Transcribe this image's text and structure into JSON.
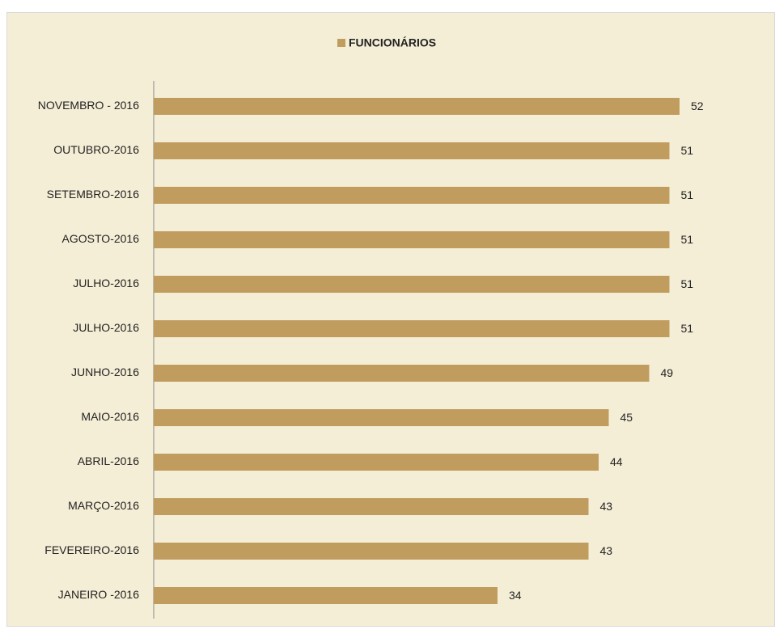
{
  "chart_data": {
    "type": "barh",
    "legend": "FUNCIONÁRIOS",
    "color": "#c09c5e",
    "categories": [
      "NOVEMBRO - 2016",
      "OUTUBRO-2016",
      "SETEMBRO-2016",
      "AGOSTO-2016",
      "JULHO-2016",
      "JULHO-2016",
      "JUNHO-2016",
      "MAIO-2016",
      "ABRIL-2016",
      "MARÇO-2016",
      "FEVEREIRO-2016",
      "JANEIRO -2016"
    ],
    "values": [
      52,
      51,
      51,
      51,
      51,
      51,
      49,
      45,
      44,
      43,
      43,
      34
    ],
    "xlim": [
      0,
      60
    ]
  }
}
